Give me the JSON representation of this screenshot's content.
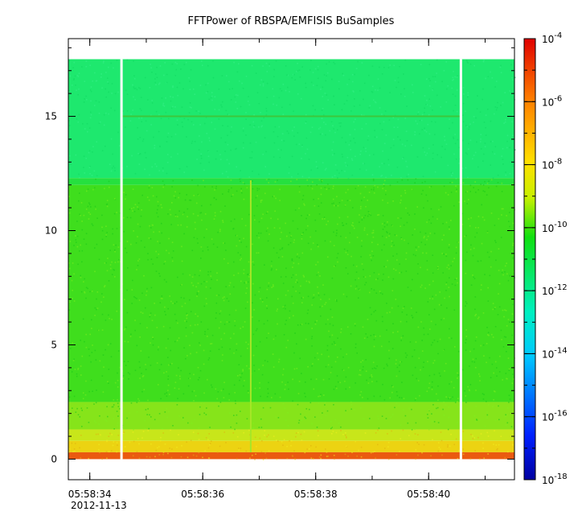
{
  "chart_data": {
    "type": "heatmap",
    "title": "FFTPower of RBSPA/EMFISIS  BuSamples",
    "date_label": "2012-11-13",
    "x": {
      "ticks": [
        {
          "label": "05:58:34",
          "seconds": 34
        },
        {
          "label": "05:58:36",
          "seconds": 36
        },
        {
          "label": "05:58:38",
          "seconds": 38
        },
        {
          "label": "05:58:40",
          "seconds": 40
        }
      ],
      "range_seconds": [
        33.62,
        41.52
      ],
      "minor_tick_step_seconds": 1
    },
    "y": {
      "ticks": [
        0,
        5,
        10,
        15
      ],
      "range": [
        -0.9,
        18.4
      ],
      "data_top": 17.5
    },
    "z": {
      "scale": "log",
      "range_exp": [
        -18,
        -4
      ],
      "ticks": [
        {
          "exp": -4,
          "label": "10",
          "sup": "-4"
        },
        {
          "exp": -6,
          "label": "10",
          "sup": "-6"
        },
        {
          "exp": -8,
          "label": "10",
          "sup": "-8"
        },
        {
          "exp": -10,
          "label": "10",
          "sup": "-10"
        },
        {
          "exp": -12,
          "label": "10",
          "sup": "-12"
        },
        {
          "exp": -14,
          "label": "10",
          "sup": "-14"
        },
        {
          "exp": -16,
          "label": "10",
          "sup": "-16"
        },
        {
          "exp": -18,
          "label": "10",
          "sup": "-18"
        }
      ]
    },
    "gaps_seconds": [
      [
        34.54,
        34.58
      ],
      [
        40.55,
        40.59
      ]
    ],
    "bands": [
      {
        "y_from": 12.3,
        "y_to": 17.5,
        "color": "#1ee86e"
      },
      {
        "y_from": 12.0,
        "y_to": 12.3,
        "color": "#25e03f"
      },
      {
        "y_from": 2.5,
        "y_to": 12.0,
        "color": "#3fde1d"
      },
      {
        "y_from": 1.3,
        "y_to": 2.5,
        "color": "#86e41a"
      },
      {
        "y_from": 0.8,
        "y_to": 1.3,
        "color": "#c8e61a"
      },
      {
        "y_from": 0.3,
        "y_to": 0.8,
        "color": "#ecd312"
      },
      {
        "y_from": 0.0,
        "y_to": 0.3,
        "color": "#ea5a10"
      }
    ],
    "features": [
      {
        "kind": "hline",
        "y": 15.0,
        "x_from": 34.58,
        "x_to": 40.55,
        "color": "#3cc83c"
      },
      {
        "kind": "vline",
        "x": 36.85,
        "y_from": 0.3,
        "y_to": 12.2,
        "color": "#a6e628"
      }
    ]
  }
}
